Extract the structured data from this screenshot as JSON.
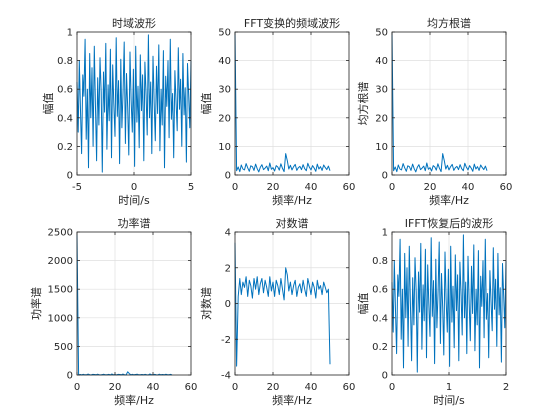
{
  "figure": {
    "background": "#ffffff",
    "line_color": "#0072bd",
    "axis_color": "#262626",
    "grid_color": "#dfdfdf"
  },
  "chart_data": [
    {
      "type": "line",
      "title": "时域波形",
      "xlabel": "时间/s",
      "ylabel": "幅值",
      "xlim": [
        -5,
        5
      ],
      "ylim": [
        0,
        1
      ],
      "xticks": [
        -5,
        0,
        5
      ],
      "yticks": [
        0,
        0.2,
        0.4,
        0.6,
        0.8,
        1
      ],
      "grid": true,
      "series": [
        {
          "values": [
            0.65,
            0.3,
            0.8,
            0.45,
            0.15,
            0.7,
            0.55,
            0.95,
            0.25,
            0.6,
            0.05,
            0.85,
            0.4,
            0.75,
            0.2,
            0.9,
            0.5,
            0.1,
            0.68,
            0.35,
            0.82,
            0.58,
            0.02,
            0.72,
            0.44,
            0.92,
            0.18,
            0.63,
            0.38,
            0.88,
            0.12,
            0.77,
            0.5,
            0.27,
            0.96,
            0.41,
            0.66,
            0.08,
            0.81,
            0.33,
            0.59,
            0.93,
            0.22,
            0.71,
            0.47,
            0.14,
            0.86,
            0.53,
            0.3,
            0.74,
            0.06,
            0.9,
            0.37,
            0.62,
            0.19,
            0.84,
            0.45,
            0.7,
            0.1,
            0.79,
            0.56,
            0.28,
            0.98,
            0.4,
            0.65,
            0.15,
            0.83,
            0.5,
            0.24,
            0.76,
            0.43,
            0.91,
            0.17,
            0.6,
            0.35,
            0.87,
            0.05,
            0.69,
            0.48,
            0.8,
            0.26,
            0.95,
            0.39,
            0.57,
            0.12,
            0.73,
            0.52,
            0.31,
            0.89,
            0.46,
            0.67,
            0.2,
            0.85,
            0.42,
            0.61,
            0.09,
            0.78,
            0.55,
            0.33,
            0.8
          ]
        }
      ]
    },
    {
      "type": "line",
      "title": "FFT变换的频域波形",
      "xlabel": "频率/Hz",
      "ylabel": "幅值",
      "xlim": [
        0,
        60
      ],
      "ylim": [
        0,
        50
      ],
      "xticks": [
        0,
        20,
        40,
        60
      ],
      "yticks": [
        0,
        10,
        20,
        30,
        40,
        50
      ],
      "grid": true,
      "series": [
        {
          "x_range": [
            0,
            50
          ],
          "values": [
            50,
            1.5,
            2.8,
            1.2,
            3.5,
            2.1,
            1.8,
            4.0,
            2.5,
            1.3,
            3.2,
            2.9,
            1.6,
            3.8,
            2.2,
            1.1,
            2.7,
            3.6,
            1.9,
            2.4,
            3.1,
            1.5,
            4.2,
            2.0,
            2.6,
            1.4,
            3.3,
            2.8,
            1.7,
            3.9,
            2.3,
            1.2,
            7.5,
            5.0,
            2.1,
            3.4,
            1.8,
            2.9,
            3.7,
            1.6,
            2.5,
            3.0,
            1.9,
            3.6,
            2.2,
            1.5,
            4.1,
            2.7,
            1.8,
            3.3,
            2.4,
            1.3,
            3.8,
            2.1,
            2.9,
            1.6,
            3.5,
            2.6,
            1.9,
            3.1,
            1.5
          ]
        }
      ]
    },
    {
      "type": "line",
      "title": "均方根谱",
      "xlabel": "频率/Hz",
      "ylabel": "均方根谱",
      "xlim": [
        0,
        60
      ],
      "ylim": [
        0,
        50
      ],
      "xticks": [
        0,
        20,
        40,
        60
      ],
      "yticks": [
        0,
        10,
        20,
        30,
        40,
        50
      ],
      "grid": true,
      "series": [
        {
          "x_range": [
            0,
            50
          ],
          "values": [
            50,
            1.5,
            2.8,
            1.2,
            3.5,
            2.1,
            1.8,
            4.0,
            2.5,
            1.3,
            3.2,
            2.9,
            1.6,
            3.8,
            2.2,
            1.1,
            2.7,
            3.6,
            1.9,
            2.4,
            3.1,
            1.5,
            4.2,
            2.0,
            2.6,
            1.4,
            3.3,
            2.8,
            1.7,
            3.9,
            2.3,
            1.2,
            7.5,
            5.0,
            2.1,
            3.4,
            1.8,
            2.9,
            3.7,
            1.6,
            2.5,
            3.0,
            1.9,
            3.6,
            2.2,
            1.5,
            4.1,
            2.7,
            1.8,
            3.3,
            2.4,
            1.3,
            3.8,
            2.1,
            2.9,
            1.6,
            3.5,
            2.6,
            1.9,
            3.1,
            1.5
          ]
        }
      ]
    },
    {
      "type": "line",
      "title": "功率谱",
      "xlabel": "频率/Hz",
      "ylabel": "功率谱",
      "xlim": [
        0,
        60
      ],
      "ylim": [
        0,
        2500
      ],
      "xticks": [
        0,
        20,
        40,
        60
      ],
      "yticks": [
        0,
        500,
        1000,
        1500,
        2000,
        2500
      ],
      "grid": true,
      "series": [
        {
          "x_range": [
            0,
            50
          ],
          "values": [
            2450,
            2,
            8,
            1,
            12,
            4,
            3,
            16,
            6,
            2,
            10,
            8,
            3,
            14,
            5,
            1,
            7,
            13,
            4,
            6,
            10,
            2,
            18,
            4,
            7,
            2,
            11,
            8,
            3,
            15,
            5,
            1,
            56,
            25,
            4,
            12,
            3,
            8,
            14,
            3,
            6,
            9,
            4,
            13,
            5,
            2,
            17,
            7,
            3,
            11,
            6,
            2,
            14,
            4,
            8,
            3,
            12,
            7,
            4,
            10,
            2
          ]
        }
      ]
    },
    {
      "type": "line",
      "title": "对数谱",
      "xlabel": "频率/Hz",
      "ylabel": "对数谱",
      "xlim": [
        0,
        60
      ],
      "ylim": [
        -4,
        4
      ],
      "xticks": [
        0,
        20,
        40,
        60
      ],
      "yticks": [
        -4,
        -2,
        0,
        2,
        4
      ],
      "grid": true,
      "series": [
        {
          "x_range": [
            0,
            50
          ],
          "values": [
            3.4,
            -3.5,
            0.4,
            1.4,
            0.5,
            1.2,
            0.9,
            1.5,
            0.4,
            1.3,
            1.0,
            0.3,
            1.4,
            0.8,
            1.5,
            0.5,
            1.1,
            1.4,
            0.6,
            1.3,
            0.9,
            0.4,
            1.5,
            0.7,
            1.2,
            0.4,
            1.3,
            1.0,
            0.5,
            1.4,
            0.8,
            0.2,
            2.0,
            1.6,
            0.7,
            1.2,
            0.5,
            1.0,
            1.3,
            0.4,
            0.9,
            1.1,
            0.6,
            1.3,
            0.8,
            0.4,
            1.4,
            1.0,
            0.5,
            1.2,
            0.9,
            0.3,
            1.3,
            0.8,
            1.0,
            0.5,
            1.2,
            0.9,
            0.6,
            0.8,
            -3.4
          ]
        }
      ]
    },
    {
      "type": "line",
      "title": "IFFT恢复后的波形",
      "xlabel": "时间/s",
      "ylabel": "幅值",
      "xlim": [
        0,
        2
      ],
      "ylim": [
        0,
        1
      ],
      "xticks": [
        0,
        1,
        2
      ],
      "yticks": [
        0,
        0.2,
        0.4,
        0.6,
        0.8,
        1
      ],
      "grid": true,
      "series": [
        {
          "values": [
            0.65,
            0.3,
            0.8,
            0.45,
            0.15,
            0.7,
            0.55,
            0.95,
            0.25,
            0.6,
            0.05,
            0.85,
            0.4,
            0.75,
            0.2,
            0.9,
            0.5,
            0.1,
            0.68,
            0.35,
            0.82,
            0.58,
            0.02,
            0.72,
            0.44,
            0.92,
            0.18,
            0.63,
            0.38,
            0.88,
            0.12,
            0.77,
            0.5,
            0.27,
            0.96,
            0.41,
            0.66,
            0.08,
            0.81,
            0.33,
            0.59,
            0.93,
            0.22,
            0.71,
            0.47,
            0.14,
            0.86,
            0.53,
            0.3,
            0.74,
            0.06,
            0.9,
            0.37,
            0.62,
            0.19,
            0.84,
            0.45,
            0.7,
            0.1,
            0.79,
            0.56,
            0.28,
            0.98,
            0.4,
            0.65,
            0.15,
            0.83,
            0.5,
            0.24,
            0.76,
            0.43,
            0.91,
            0.17,
            0.6,
            0.35,
            0.87,
            0.05,
            0.69,
            0.48,
            0.8,
            0.26,
            0.95,
            0.39,
            0.57,
            0.12,
            0.73,
            0.52,
            0.31,
            0.89,
            0.46,
            0.67,
            0.2,
            0.85,
            0.42,
            0.61,
            0.09,
            0.78,
            0.55,
            0.33,
            0.8
          ]
        }
      ]
    }
  ]
}
